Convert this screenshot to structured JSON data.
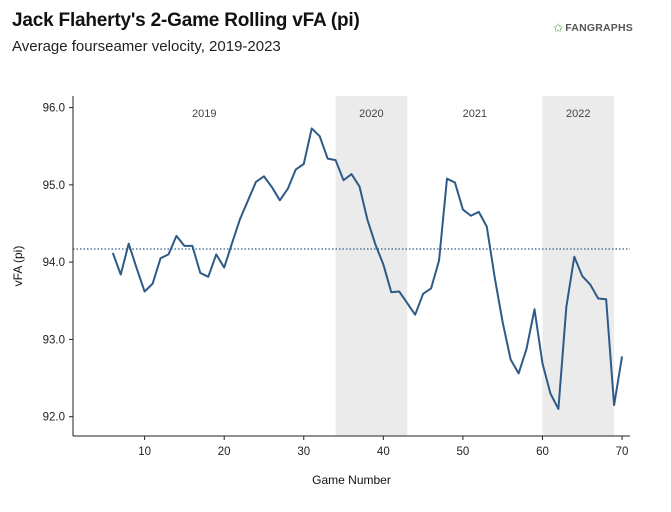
{
  "header": {
    "title": "Jack Flaherty's 2-Game Rolling vFA (pi)",
    "subtitle": "Average fourseamer velocity, 2019-2023",
    "logo_text": "FANGRAPHS",
    "logo_icon": "fangraphs-leaf-icon"
  },
  "chart_data": {
    "type": "line",
    "title": "Jack Flaherty's 2-Game Rolling vFA (pi)",
    "subtitle": "Average fourseamer velocity, 2019-2023",
    "xlabel": "Game Number",
    "ylabel": "vFA (pi)",
    "xlim": [
      1,
      71
    ],
    "ylim": [
      91.75,
      96.15
    ],
    "x_ticks": [
      10,
      20,
      30,
      40,
      50,
      60,
      70
    ],
    "y_ticks": [
      92.0,
      93.0,
      94.0,
      95.0,
      96.0
    ],
    "y_tick_labels": [
      "92.0",
      "93.0",
      "94.0",
      "95.0",
      "96.0"
    ],
    "grid": false,
    "reference_line": {
      "y": 94.17,
      "style": "dotted"
    },
    "seasons": [
      {
        "label": "2019",
        "start": 1,
        "end": 34,
        "shaded": false
      },
      {
        "label": "2020",
        "start": 34,
        "end": 43,
        "shaded": true
      },
      {
        "label": "2021",
        "start": 43,
        "end": 60,
        "shaded": false
      },
      {
        "label": "2022",
        "start": 60,
        "end": 69,
        "shaded": true
      }
    ],
    "colors": {
      "line": "#2e5a87",
      "shade": "#ebebeb",
      "reference": "#2e5a87"
    },
    "series": [
      {
        "x": [
          6,
          7,
          8,
          9,
          10,
          11,
          12,
          13,
          14,
          15,
          16,
          17,
          18,
          19,
          20,
          21,
          22,
          23,
          24,
          25,
          26,
          27,
          28,
          29,
          30,
          31,
          32,
          33,
          34,
          35,
          36,
          37,
          38,
          39,
          40,
          41,
          42,
          43,
          44,
          45,
          46,
          47,
          48,
          49,
          50,
          51,
          52,
          53,
          54,
          55,
          56,
          57,
          58,
          59,
          60,
          61,
          62,
          63,
          64,
          65,
          66,
          67,
          68,
          69,
          70
        ],
        "y": [
          94.12,
          93.84,
          94.24,
          93.92,
          93.62,
          93.72,
          94.05,
          94.1,
          94.34,
          94.21,
          94.21,
          93.86,
          93.81,
          94.1,
          93.93,
          94.25,
          94.56,
          94.8,
          95.04,
          95.11,
          94.97,
          94.8,
          94.95,
          95.2,
          95.27,
          95.73,
          95.63,
          95.34,
          95.32,
          95.06,
          95.14,
          94.98,
          94.55,
          94.23,
          93.97,
          93.61,
          93.62,
          93.47,
          93.32,
          93.59,
          93.66,
          94.02,
          95.08,
          95.03,
          94.68,
          94.6,
          94.65,
          94.46,
          93.8,
          93.22,
          92.74,
          92.56,
          92.88,
          93.39,
          92.69,
          92.3,
          92.1,
          93.42,
          94.07,
          93.82,
          93.71,
          93.53,
          93.52,
          92.15,
          92.78
        ]
      }
    ]
  }
}
